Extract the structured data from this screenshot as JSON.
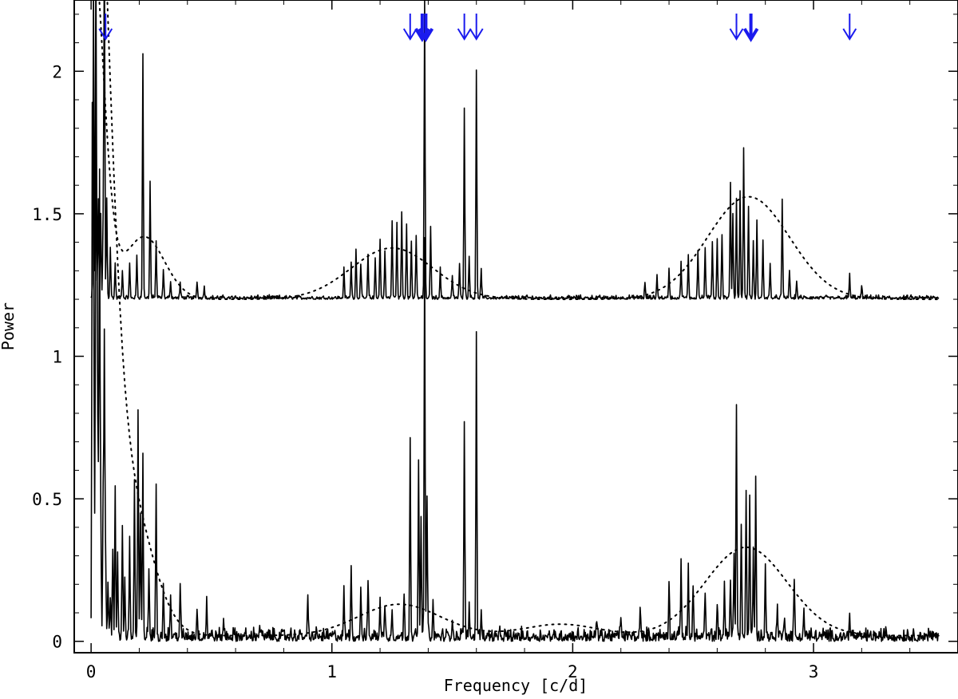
{
  "chart_data": {
    "type": "line",
    "title": "",
    "xlabel": "Frequency [c/d]",
    "ylabel": "Power",
    "xlim": [
      -0.07,
      3.6
    ],
    "ylim": [
      -0.04,
      2.25
    ],
    "x_ticks": [
      0,
      1,
      2,
      3
    ],
    "x_tick_labels": [
      "0",
      "1",
      "2",
      "3"
    ],
    "y_ticks": [
      0,
      0.5,
      1,
      1.5,
      2
    ],
    "y_tick_labels": [
      "0",
      "0.5",
      "1",
      "1.5",
      "2"
    ],
    "grid": false,
    "colors": {
      "axes": "#000000",
      "series": "#000000",
      "arrows": "#1a1aee"
    },
    "series": [
      {
        "offset": 1.2,
        "baseline_noise": 0.012,
        "peaks": [
          [
            0.01,
            1.1
          ],
          [
            0.02,
            1.2
          ],
          [
            0.03,
            0.35
          ],
          [
            0.04,
            0.3
          ],
          [
            0.05,
            0.25
          ],
          [
            0.055,
            1.3
          ],
          [
            0.065,
            0.35
          ],
          [
            0.08,
            0.18
          ],
          [
            0.1,
            0.12
          ],
          [
            0.13,
            0.1
          ],
          [
            0.16,
            0.12
          ],
          [
            0.19,
            0.15
          ],
          [
            0.215,
            0.86
          ],
          [
            0.245,
            0.41
          ],
          [
            0.27,
            0.2
          ],
          [
            0.3,
            0.1
          ],
          [
            0.33,
            0.06
          ],
          [
            0.37,
            0.05
          ],
          [
            0.44,
            0.06
          ],
          [
            0.47,
            0.04
          ],
          [
            1.05,
            0.1
          ],
          [
            1.08,
            0.13
          ],
          [
            1.1,
            0.17
          ],
          [
            1.12,
            0.12
          ],
          [
            1.15,
            0.15
          ],
          [
            1.18,
            0.14
          ],
          [
            1.2,
            0.21
          ],
          [
            1.22,
            0.17
          ],
          [
            1.25,
            0.27
          ],
          [
            1.27,
            0.26
          ],
          [
            1.29,
            0.3
          ],
          [
            1.31,
            0.26
          ],
          [
            1.33,
            0.2
          ],
          [
            1.35,
            0.22
          ],
          [
            1.385,
            1.05
          ],
          [
            1.41,
            0.25
          ],
          [
            1.45,
            0.1
          ],
          [
            1.5,
            0.08
          ],
          [
            1.53,
            0.12
          ],
          [
            1.55,
            0.67
          ],
          [
            1.57,
            0.15
          ],
          [
            1.6,
            0.8
          ],
          [
            1.62,
            0.1
          ],
          [
            2.3,
            0.05
          ],
          [
            2.35,
            0.08
          ],
          [
            2.4,
            0.1
          ],
          [
            2.45,
            0.12
          ],
          [
            2.48,
            0.15
          ],
          [
            2.52,
            0.17
          ],
          [
            2.55,
            0.18
          ],
          [
            2.58,
            0.2
          ],
          [
            2.6,
            0.21
          ],
          [
            2.62,
            0.22
          ],
          [
            2.655,
            0.41
          ],
          [
            2.665,
            0.3
          ],
          [
            2.68,
            0.35
          ],
          [
            2.695,
            0.38
          ],
          [
            2.71,
            0.53
          ],
          [
            2.73,
            0.32
          ],
          [
            2.75,
            0.2
          ],
          [
            2.765,
            0.27
          ],
          [
            2.79,
            0.2
          ],
          [
            2.82,
            0.12
          ],
          [
            2.87,
            0.34
          ],
          [
            2.9,
            0.1
          ],
          [
            2.93,
            0.06
          ],
          [
            3.15,
            0.08
          ],
          [
            3.2,
            0.04
          ]
        ],
        "envelope": {
          "baseline": 1.2,
          "components": [
            {
              "a": 0.22,
              "mu": 0.22,
              "sigma": 0.085
            },
            {
              "a": 0.18,
              "mu": 1.25,
              "sigma": 0.17
            },
            {
              "a": 0.36,
              "mu": 2.73,
              "sigma": 0.17
            },
            {
              "a": 1.3,
              "mu": 0.0,
              "sigma": 0.05
            }
          ]
        }
      },
      {
        "offset": 0.0,
        "baseline_noise": 0.04,
        "peaks": [
          [
            0.005,
            1.8
          ],
          [
            0.01,
            1.6
          ],
          [
            0.015,
            0.3
          ],
          [
            0.02,
            1.9
          ],
          [
            0.025,
            1.2
          ],
          [
            0.03,
            0.5
          ],
          [
            0.035,
            1.6
          ],
          [
            0.04,
            0.45
          ],
          [
            0.05,
            0.5
          ],
          [
            0.055,
            1.06
          ],
          [
            0.06,
            0.3
          ],
          [
            0.07,
            0.2
          ],
          [
            0.08,
            0.15
          ],
          [
            0.09,
            0.3
          ],
          [
            0.1,
            0.5
          ],
          [
            0.11,
            0.3
          ],
          [
            0.13,
            0.4
          ],
          [
            0.14,
            0.2
          ],
          [
            0.16,
            0.35
          ],
          [
            0.18,
            0.54
          ],
          [
            0.195,
            0.78
          ],
          [
            0.205,
            0.43
          ],
          [
            0.215,
            0.62
          ],
          [
            0.24,
            0.25
          ],
          [
            0.27,
            0.55
          ],
          [
            0.3,
            0.2
          ],
          [
            0.33,
            0.15
          ],
          [
            0.37,
            0.18
          ],
          [
            0.44,
            0.1
          ],
          [
            0.48,
            0.12
          ],
          [
            0.55,
            0.06
          ],
          [
            0.7,
            0.05
          ],
          [
            0.9,
            0.14
          ],
          [
            1.05,
            0.15
          ],
          [
            1.08,
            0.26
          ],
          [
            1.12,
            0.18
          ],
          [
            1.15,
            0.2
          ],
          [
            1.2,
            0.14
          ],
          [
            1.22,
            0.12
          ],
          [
            1.25,
            0.1
          ],
          [
            1.3,
            0.14
          ],
          [
            1.325,
            0.7
          ],
          [
            1.36,
            0.6
          ],
          [
            1.37,
            0.43
          ],
          [
            1.385,
            1.4
          ],
          [
            1.395,
            0.5
          ],
          [
            1.42,
            0.1
          ],
          [
            1.5,
            0.07
          ],
          [
            1.55,
            0.76
          ],
          [
            1.57,
            0.1
          ],
          [
            1.6,
            1.07
          ],
          [
            1.62,
            0.1
          ],
          [
            2.1,
            0.06
          ],
          [
            2.2,
            0.08
          ],
          [
            2.28,
            0.1
          ],
          [
            2.4,
            0.2
          ],
          [
            2.45,
            0.27
          ],
          [
            2.48,
            0.25
          ],
          [
            2.5,
            0.18
          ],
          [
            2.55,
            0.15
          ],
          [
            2.6,
            0.12
          ],
          [
            2.63,
            0.2
          ],
          [
            2.655,
            0.2
          ],
          [
            2.67,
            0.3
          ],
          [
            2.68,
            0.83
          ],
          [
            2.7,
            0.4
          ],
          [
            2.72,
            0.52
          ],
          [
            2.735,
            0.5
          ],
          [
            2.75,
            0.3
          ],
          [
            2.76,
            0.55
          ],
          [
            2.8,
            0.25
          ],
          [
            2.85,
            0.12
          ],
          [
            2.88,
            0.08
          ],
          [
            2.92,
            0.19
          ],
          [
            2.96,
            0.1
          ],
          [
            3.15,
            0.09
          ],
          [
            3.3,
            0.03
          ]
        ],
        "envelope": {
          "baseline": 0.02,
          "components": [
            {
              "a": 3.0,
              "mu": 0.0,
              "sigma": 0.07
            },
            {
              "a": 0.48,
              "mu": 0.15,
              "sigma": 0.1
            },
            {
              "a": 0.11,
              "mu": 1.28,
              "sigma": 0.17
            },
            {
              "a": 0.04,
              "mu": 1.95,
              "sigma": 0.15
            },
            {
              "a": 0.31,
              "mu": 2.72,
              "sigma": 0.17
            }
          ]
        }
      }
    ],
    "annotations": {
      "arrows": [
        {
          "x": 0.06,
          "bold": false
        },
        {
          "x": 1.325,
          "bold": false
        },
        {
          "x": 1.375,
          "bold": true
        },
        {
          "x": 1.39,
          "bold": true
        },
        {
          "x": 1.55,
          "bold": false
        },
        {
          "x": 1.6,
          "bold": false
        },
        {
          "x": 2.68,
          "bold": false
        },
        {
          "x": 2.74,
          "bold": true
        },
        {
          "x": 3.15,
          "bold": false
        }
      ]
    }
  }
}
